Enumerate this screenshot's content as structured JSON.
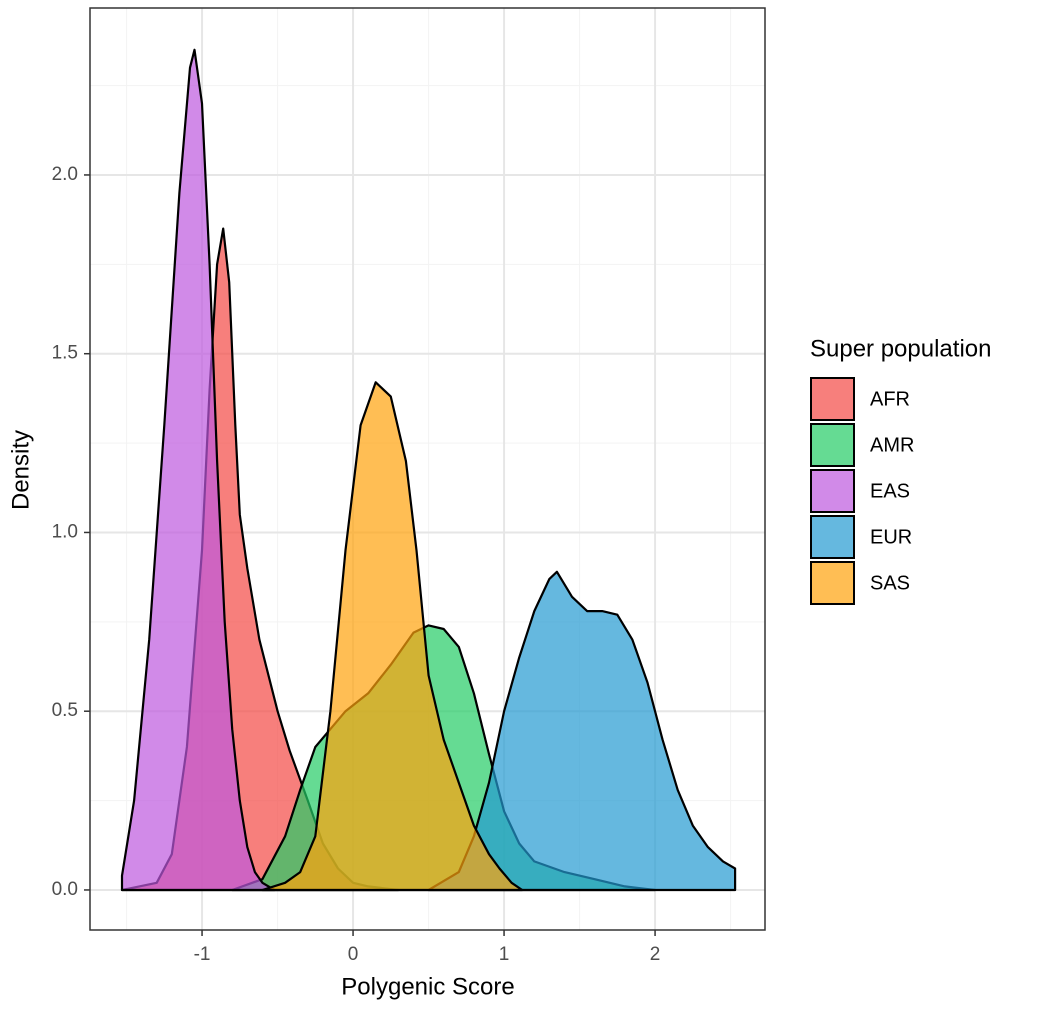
{
  "chart_data": {
    "type": "density",
    "x_label": "Polygenic Score",
    "y_label": "Density",
    "legend_title": "Super population",
    "legend_position": "right",
    "alpha": 0.7,
    "grid": true,
    "xlim": [
      -1.742,
      2.728
    ],
    "ylim": [
      -0.112,
      2.467
    ],
    "xticks": [
      -1,
      0,
      1,
      2
    ],
    "yticks": [
      {
        "value": 0,
        "label": "0.0"
      },
      {
        "value": 0.5,
        "label": "0.5"
      },
      {
        "value": 1,
        "label": "1.0"
      },
      {
        "value": 1.5,
        "label": "1.5"
      },
      {
        "value": 2,
        "label": "2.0"
      }
    ],
    "x_minor_grid": [
      -1.5,
      -0.5,
      0.5,
      1.5,
      2.5
    ],
    "y_minor_grid": [
      0.25,
      0.75,
      1.25,
      1.75,
      2.25
    ],
    "series": [
      {
        "name": "AFR",
        "color": "#F34845",
        "x": [
          -1.53,
          -1.3,
          -1.2,
          -1.1,
          -1.0,
          -0.95,
          -0.9,
          -0.86,
          -0.82,
          -0.78,
          -0.75,
          -0.7,
          -0.62,
          -0.5,
          -0.42,
          -0.3,
          -0.2,
          -0.1,
          0.0,
          0.1,
          0.3
        ],
        "values": [
          0,
          0.02,
          0.1,
          0.4,
          0.95,
          1.4,
          1.75,
          1.85,
          1.7,
          1.3,
          1.05,
          0.9,
          0.7,
          0.5,
          0.39,
          0.25,
          0.13,
          0.06,
          0.02,
          0.01,
          0
        ]
      },
      {
        "name": "AMR",
        "color": "#24CC65",
        "x": [
          -0.8,
          -0.6,
          -0.45,
          -0.35,
          -0.25,
          -0.15,
          -0.05,
          0.1,
          0.25,
          0.4,
          0.5,
          0.6,
          0.7,
          0.8,
          0.9,
          1.0,
          1.1,
          1.2,
          1.4,
          1.6,
          1.8,
          2.0
        ],
        "values": [
          0,
          0.03,
          0.15,
          0.28,
          0.4,
          0.45,
          0.5,
          0.55,
          0.63,
          0.72,
          0.74,
          0.73,
          0.68,
          0.55,
          0.38,
          0.22,
          0.13,
          0.08,
          0.05,
          0.03,
          0.01,
          0
        ]
      },
      {
        "name": "EAS",
        "color": "#BD59DE",
        "x": [
          -1.53,
          -1.45,
          -1.35,
          -1.25,
          -1.15,
          -1.08,
          -1.05,
          -1.0,
          -0.95,
          -0.9,
          -0.85,
          -0.8,
          -0.75,
          -0.7,
          -0.65,
          -0.6,
          -0.52
        ],
        "values": [
          0.04,
          0.25,
          0.7,
          1.3,
          1.95,
          2.3,
          2.35,
          2.2,
          1.75,
          1.2,
          0.75,
          0.45,
          0.25,
          0.12,
          0.05,
          0.02,
          0
        ]
      },
      {
        "name": "EUR",
        "color": "#249AD1",
        "x": [
          0.5,
          0.7,
          0.8,
          0.9,
          1.0,
          1.1,
          1.2,
          1.3,
          1.35,
          1.45,
          1.55,
          1.65,
          1.75,
          1.85,
          1.95,
          2.05,
          2.15,
          2.25,
          2.35,
          2.45,
          2.53
        ],
        "values": [
          0,
          0.05,
          0.15,
          0.3,
          0.5,
          0.65,
          0.78,
          0.87,
          0.89,
          0.82,
          0.78,
          0.78,
          0.77,
          0.7,
          0.58,
          0.42,
          0.28,
          0.18,
          0.12,
          0.08,
          0.06
        ]
      },
      {
        "name": "SAS",
        "color": "#FFA20C",
        "x": [
          -0.6,
          -0.45,
          -0.35,
          -0.25,
          -0.15,
          -0.05,
          0.05,
          0.15,
          0.25,
          0.35,
          0.42,
          0.5,
          0.6,
          0.7,
          0.8,
          0.9,
          0.97,
          1.05,
          1.12
        ],
        "values": [
          0,
          0.02,
          0.05,
          0.15,
          0.5,
          0.95,
          1.3,
          1.42,
          1.38,
          1.2,
          0.95,
          0.6,
          0.42,
          0.3,
          0.18,
          0.1,
          0.06,
          0.02,
          0
        ]
      }
    ]
  }
}
